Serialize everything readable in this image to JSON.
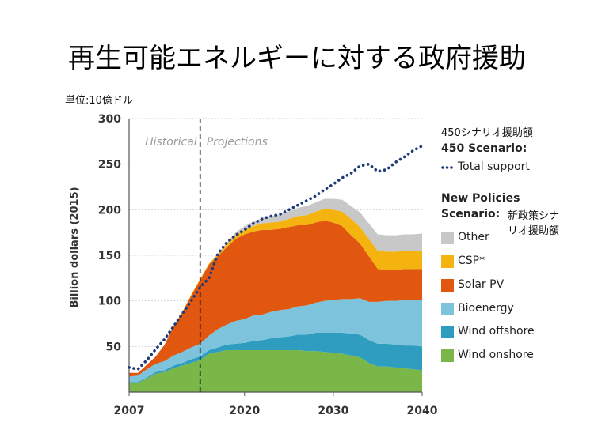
{
  "title": "再生可能エネルギーに対する政府援助",
  "unit_label": "単位:10億ドル",
  "chart_data": {
    "type": "area",
    "ylabel": "Billion dollars (2015)",
    "ylim": [
      0,
      300
    ],
    "xlim": [
      2007,
      2040
    ],
    "yticks": [
      50,
      100,
      150,
      200,
      250,
      300
    ],
    "xticks": [
      2007,
      2020,
      2030,
      2040
    ],
    "divider": {
      "x": 2015,
      "left_label": "Historical",
      "right_label": "Projections"
    },
    "x": [
      2007,
      2008,
      2009,
      2010,
      2011,
      2012,
      2013,
      2014,
      2015,
      2016,
      2017,
      2018,
      2019,
      2020,
      2021,
      2022,
      2023,
      2024,
      2025,
      2026,
      2027,
      2028,
      2029,
      2030,
      2031,
      2032,
      2033,
      2034,
      2035,
      2036,
      2037,
      2038,
      2039,
      2040
    ],
    "series": [
      {
        "name": "Wind onshore",
        "color": "#7ab648",
        "values": [
          10,
          10,
          15,
          20,
          22,
          26,
          29,
          32,
          35,
          42,
          44,
          46,
          46,
          46,
          46,
          46,
          46,
          46,
          46,
          46,
          45,
          45,
          44,
          43,
          42,
          40,
          38,
          32,
          28,
          28,
          27,
          26,
          25,
          24
        ]
      },
      {
        "name": "Wind offshore",
        "color": "#2e9dbf",
        "values": [
          1,
          1,
          1,
          2,
          2,
          3,
          3,
          4,
          4,
          4,
          5,
          6,
          7,
          8,
          10,
          11,
          13,
          14,
          15,
          17,
          18,
          20,
          21,
          22,
          23,
          24,
          25,
          25,
          25,
          25,
          25,
          25,
          26,
          26
        ]
      },
      {
        "name": "Bioenergy",
        "color": "#7dc3db",
        "values": [
          6,
          7,
          9,
          9,
          10,
          11,
          12,
          13,
          14,
          16,
          20,
          22,
          25,
          26,
          28,
          28,
          29,
          30,
          30,
          31,
          32,
          33,
          35,
          36,
          37,
          38,
          40,
          42,
          46,
          47,
          48,
          50,
          50,
          51
        ]
      },
      {
        "name": "Solar PV",
        "color": "#e2570f",
        "values": [
          4,
          3,
          5,
          8,
          18,
          32,
          44,
          57,
          70,
          78,
          80,
          85,
          90,
          93,
          92,
          93,
          90,
          89,
          90,
          89,
          88,
          88,
          88,
          85,
          80,
          70,
          60,
          50,
          36,
          34,
          34,
          34,
          34,
          34
        ]
      },
      {
        "name": "CSP*",
        "color": "#f5b30f",
        "values": [
          0,
          0,
          0,
          0,
          0,
          0,
          0,
          1,
          1,
          1,
          2,
          3,
          4,
          5,
          6,
          7,
          8,
          8,
          9,
          10,
          11,
          12,
          13,
          14,
          16,
          18,
          18,
          19,
          20,
          20,
          20,
          20,
          20,
          20
        ]
      },
      {
        "name": "Other",
        "color": "#c8c8c8",
        "values": [
          0,
          0,
          0,
          0,
          0,
          0,
          0,
          0,
          0,
          0,
          1,
          2,
          3,
          4,
          5,
          6,
          7,
          8,
          8,
          9,
          10,
          10,
          11,
          12,
          13,
          14,
          16,
          17,
          18,
          18,
          18,
          18,
          18,
          19
        ]
      }
    ],
    "total_support_450": {
      "name": "Total support",
      "color": "#1f3a78",
      "values": [
        27,
        25,
        35,
        47,
        58,
        72,
        86,
        100,
        115,
        125,
        152,
        164,
        172,
        178,
        185,
        190,
        193,
        195,
        200,
        205,
        210,
        215,
        222,
        228,
        235,
        240,
        248,
        250,
        242,
        244,
        252,
        258,
        265,
        270
      ]
    }
  },
  "legend": {
    "scenario450_jp": "450シナリオ援助額",
    "scenario450_head": "450 Scenario:",
    "total_support": "Total support",
    "new_policies_head1": "New Policies",
    "new_policies_head2": "Scenario:",
    "new_policies_jp1": "新政策シナ",
    "new_policies_jp2": "リオ援助額",
    "items": [
      {
        "label": "Other",
        "color": "#c8c8c8"
      },
      {
        "label": "CSP*",
        "color": "#f5b30f"
      },
      {
        "label": "Solar PV",
        "color": "#e2570f"
      },
      {
        "label": "Bioenergy",
        "color": "#7dc3db"
      },
      {
        "label": "Wind offshore",
        "color": "#2e9dbf"
      },
      {
        "label": "Wind onshore",
        "color": "#7ab648"
      }
    ]
  }
}
